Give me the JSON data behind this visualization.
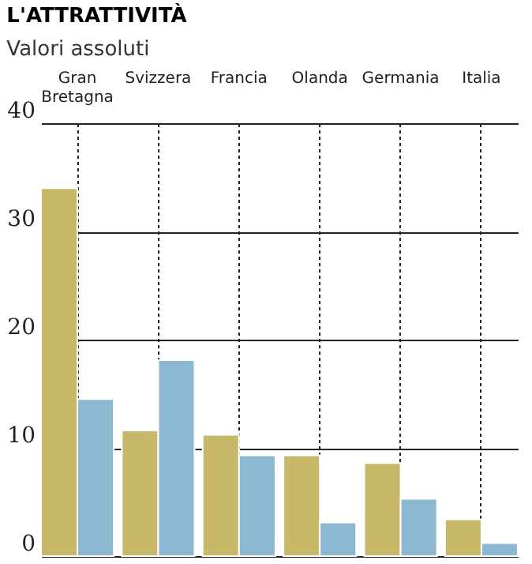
{
  "chart_data": {
    "type": "bar",
    "title": "L'ATTRATTIVITÀ",
    "subtitle": "Valori assoluti",
    "categories": [
      "Gran Bretagna",
      "Svizzera",
      "Francia",
      "Olanda",
      "Germania",
      "Italia"
    ],
    "series": [
      {
        "color": "#c8b96a",
        "values": [
          34,
          11.6,
          11.2,
          9.3,
          8.6,
          3.4
        ]
      },
      {
        "color": "#8cb9d1",
        "values": [
          14.5,
          18.1,
          9.3,
          3.1,
          5.3,
          1.2
        ]
      }
    ],
    "ylim": [
      0,
      40
    ],
    "yticks": [
      0,
      10,
      20,
      30,
      40
    ],
    "grid": true
  }
}
